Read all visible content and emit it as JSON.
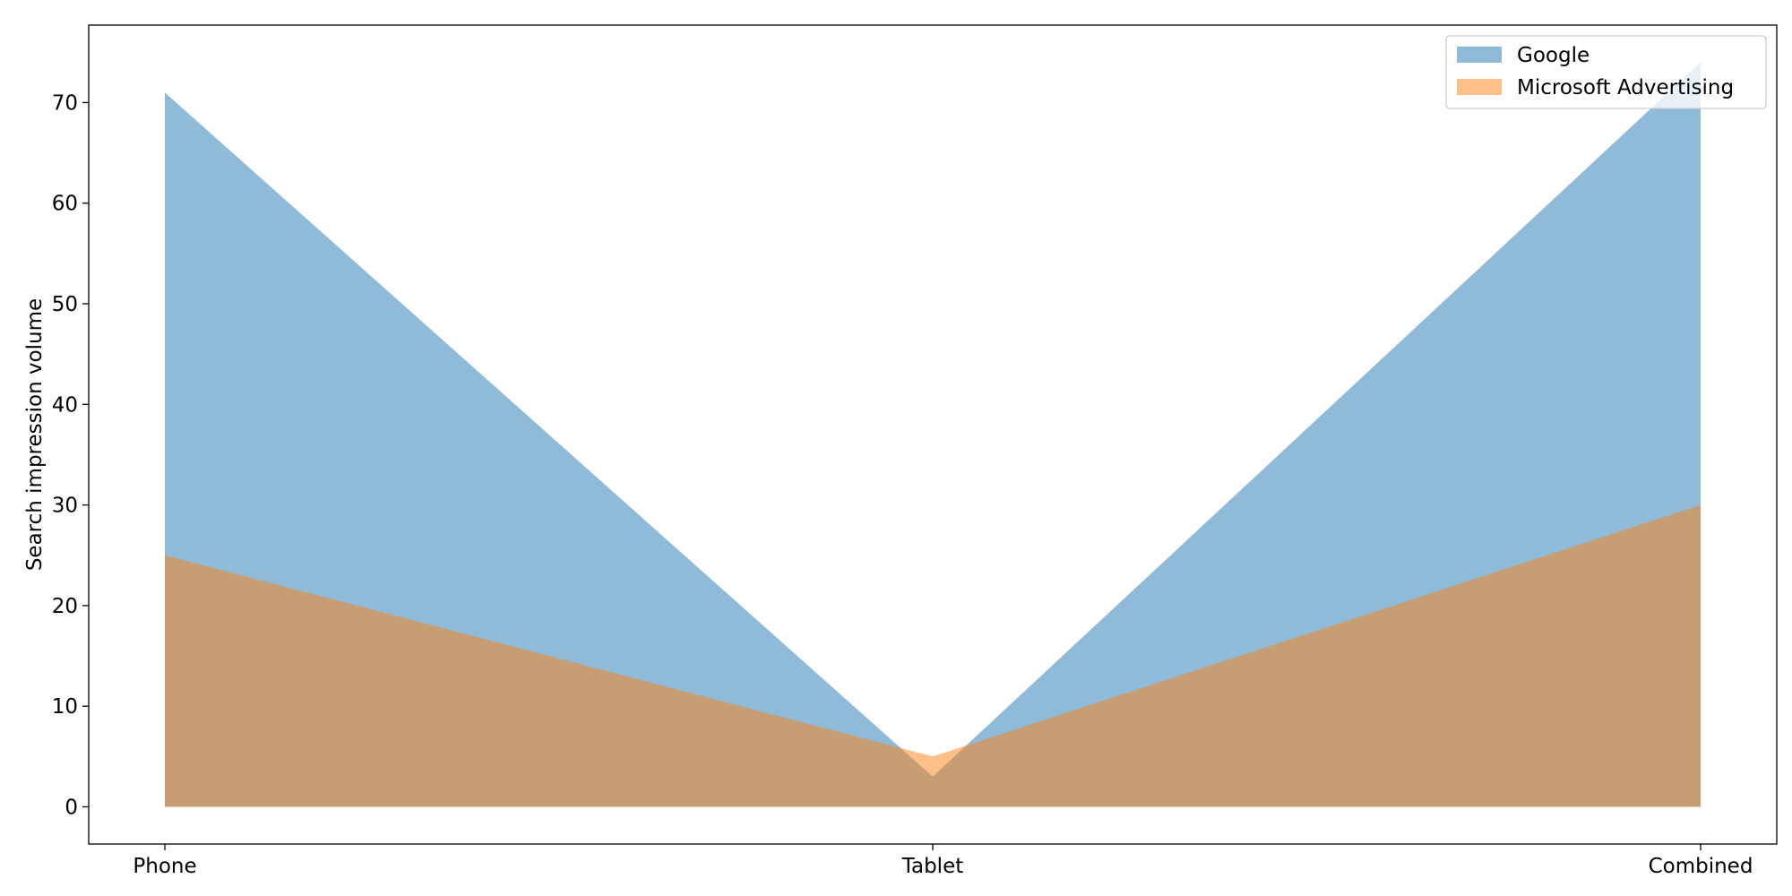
{
  "chart_data": {
    "type": "area",
    "categories": [
      "Phone",
      "Tablet",
      "Combined"
    ],
    "series": [
      {
        "name": "Google",
        "values": [
          71,
          3,
          74
        ],
        "color": "#1f77b4"
      },
      {
        "name": "Microsoft Advertising",
        "values": [
          25,
          5,
          30
        ],
        "color": "#ff7f0e"
      }
    ],
    "fill_opacity": 0.5,
    "title": "",
    "xlabel": "",
    "ylabel": "Search impression volume",
    "ylim": [
      -3.7,
      77.7
    ],
    "yticks": [
      0,
      10,
      20,
      30,
      40,
      50,
      60,
      70
    ],
    "grid": false,
    "legend_position": "top-right"
  }
}
